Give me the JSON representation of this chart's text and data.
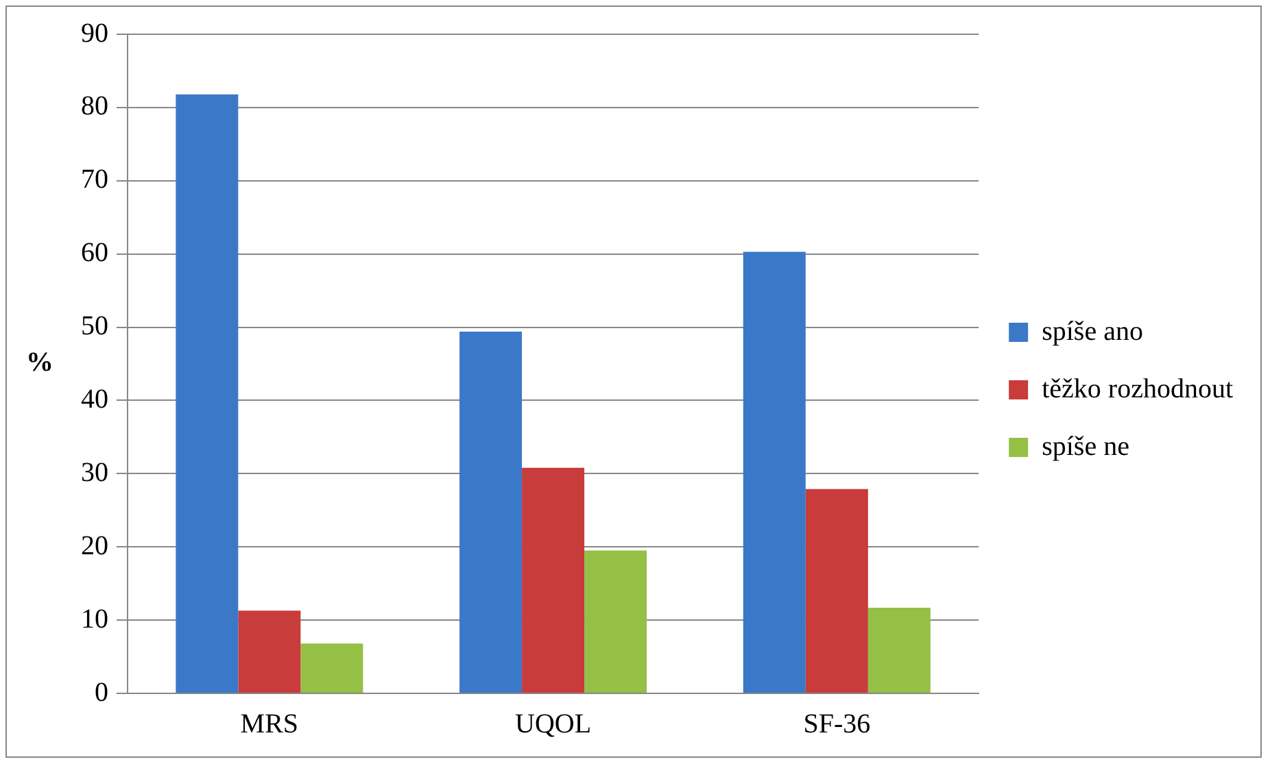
{
  "chart_data": {
    "type": "bar",
    "ylabel": "%",
    "categories": [
      "MRS",
      "UQOL",
      "SF-36"
    ],
    "series": [
      {
        "name": "spíše ano",
        "color": "#3c78c8",
        "values": [
          81.8,
          49.4,
          60.3
        ]
      },
      {
        "name": "těžko rozhodnout",
        "color": "#c83c3c",
        "values": [
          11.3,
          30.8,
          27.9
        ]
      },
      {
        "name": "spíše ne",
        "color": "#94c046",
        "values": [
          6.8,
          19.5,
          11.7
        ]
      }
    ],
    "ylim": [
      0,
      90
    ],
    "yticks": [
      0,
      10,
      20,
      30,
      40,
      50,
      60,
      70,
      80,
      90
    ],
    "grid": "y",
    "legend": "right"
  }
}
